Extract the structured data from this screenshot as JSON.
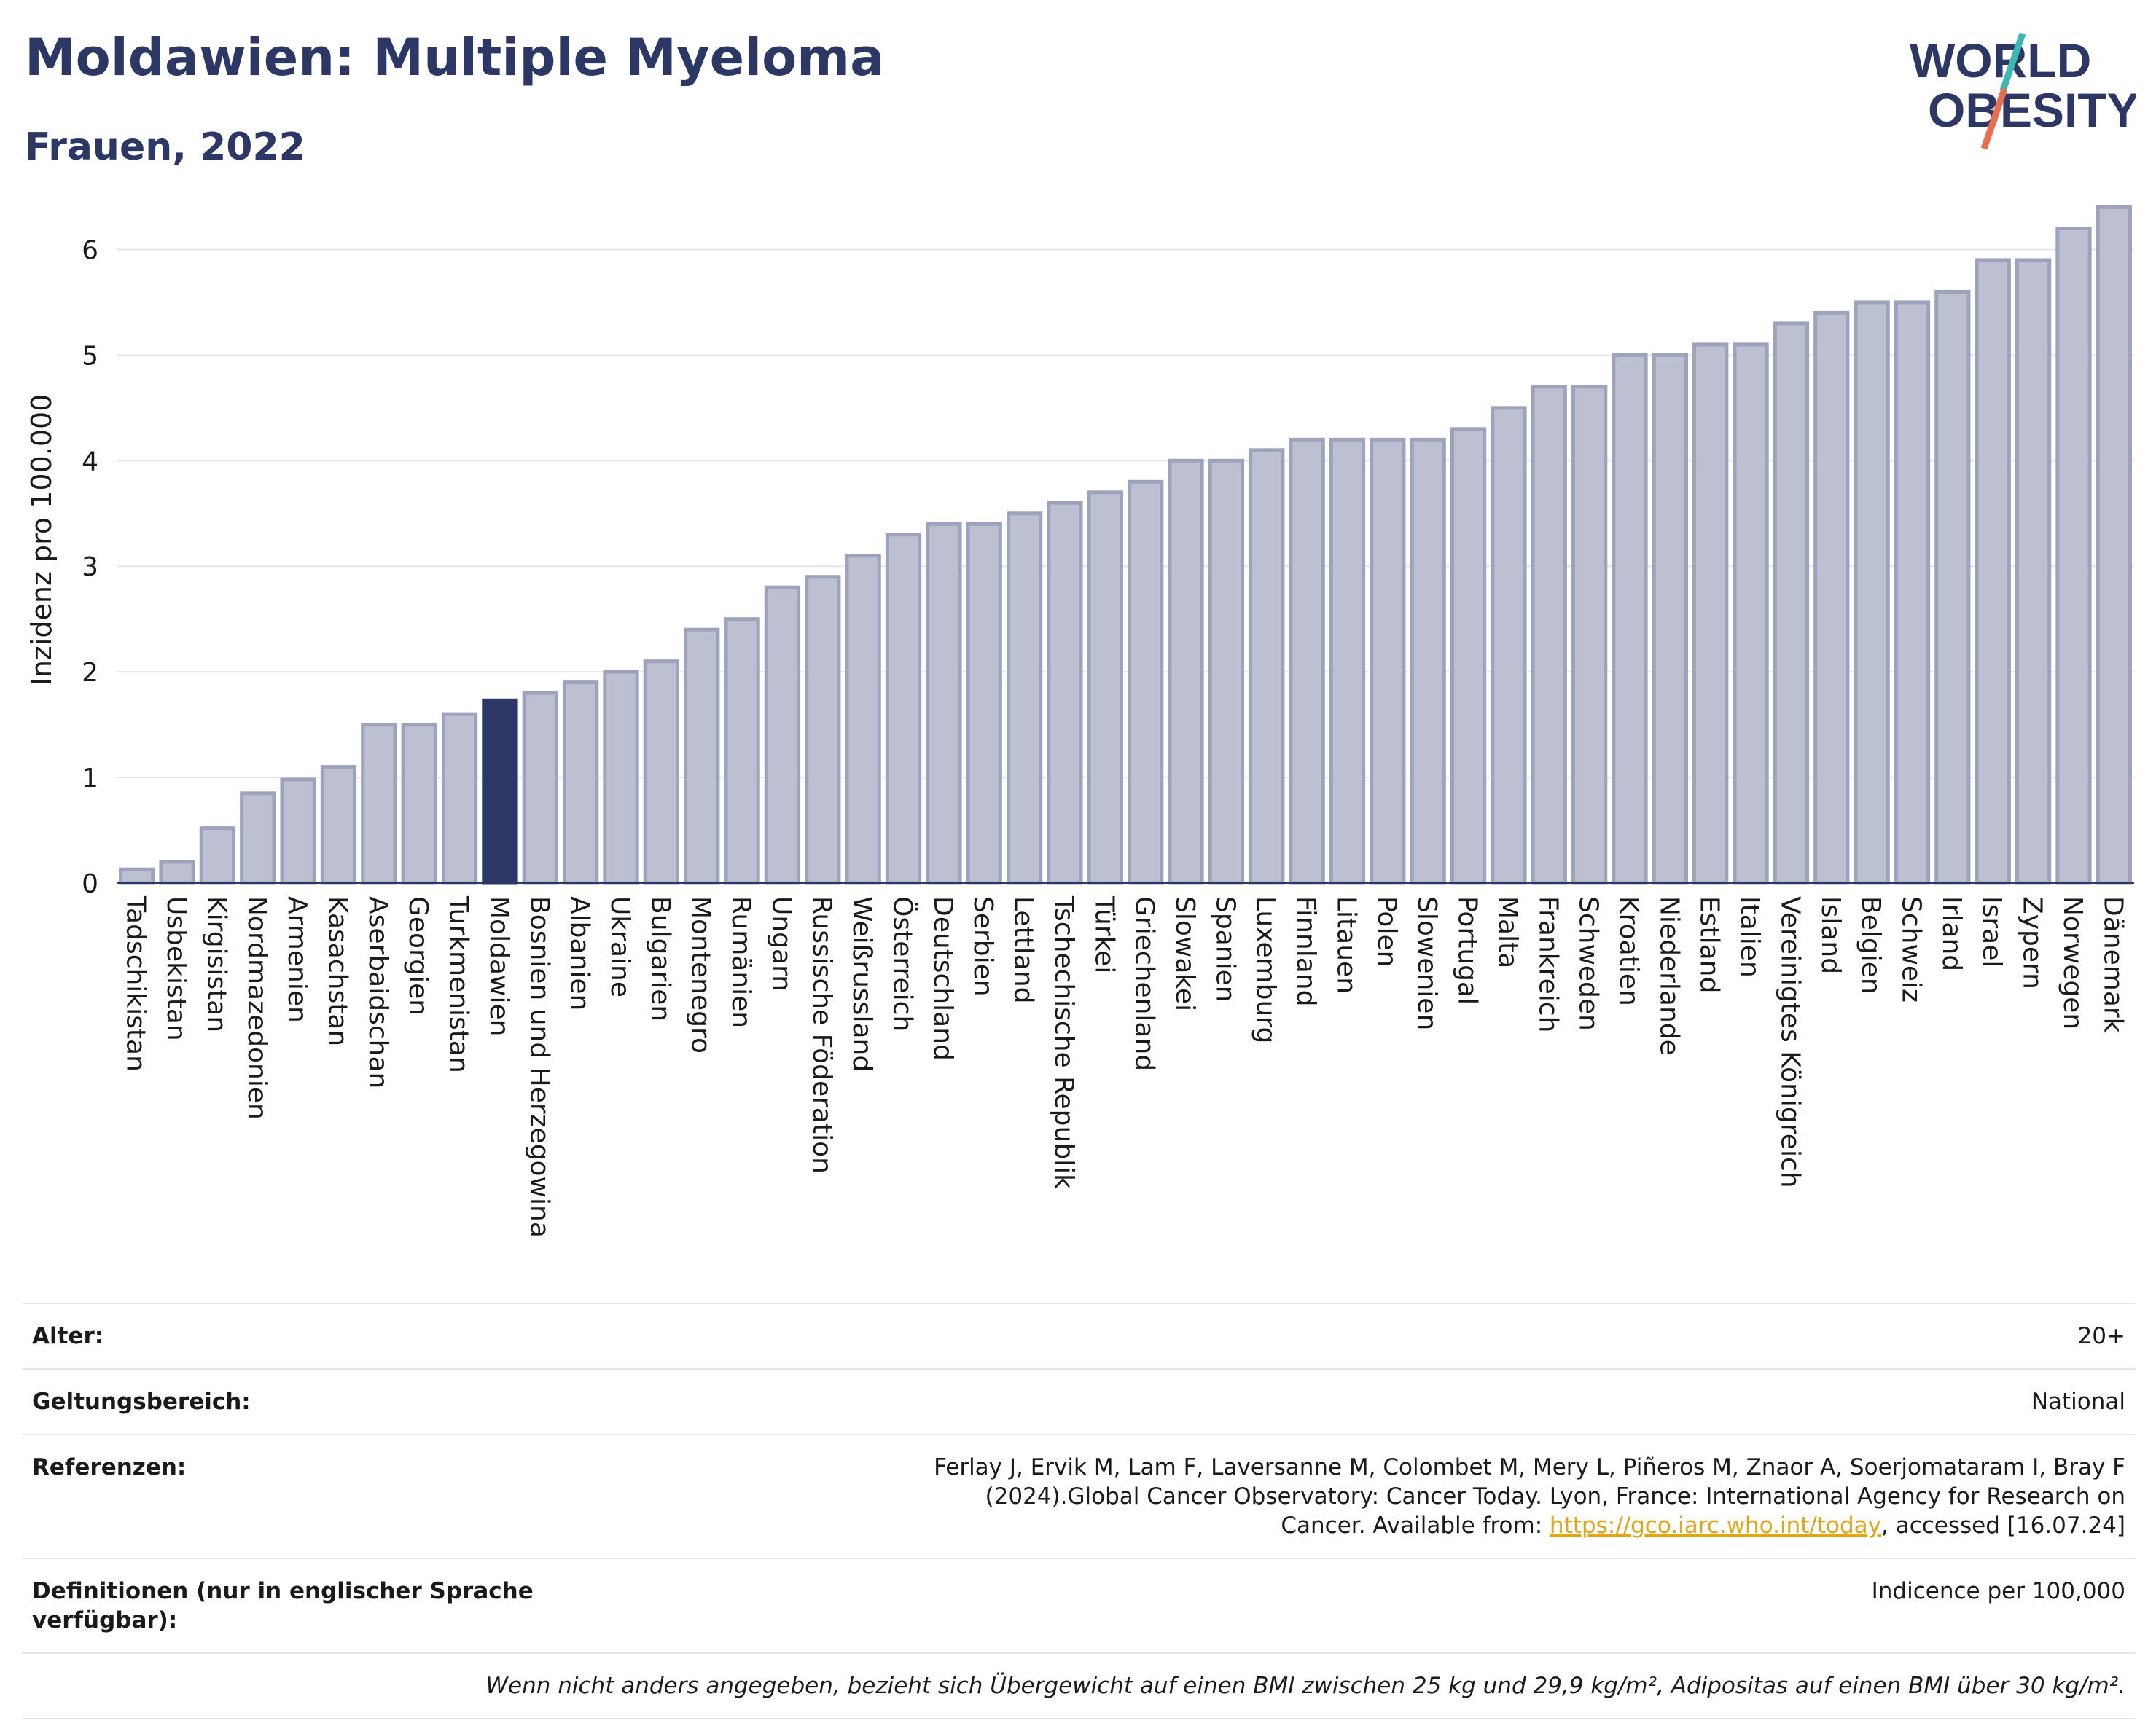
{
  "header": {
    "title": "Moldawien: Multiple Myeloma",
    "subtitle": "Frauen, 2022"
  },
  "logo": {
    "line1": "WORLD",
    "line2": "OBESITY",
    "text_color": "#2c3765",
    "slash_colors": [
      "#3bb8b0",
      "#e86e52"
    ]
  },
  "colors": {
    "bar": "#bcc0d1",
    "bar_border": "#9da3bc",
    "highlight": "#2c3765",
    "axis": "#2c3765",
    "grid": "#e6e6e6"
  },
  "chart_data": {
    "type": "bar",
    "ylabel": "Inzidenz pro 100.000",
    "ylim": [
      0,
      6.5
    ],
    "yticks": [
      0,
      1,
      2,
      3,
      4,
      5,
      6
    ],
    "grid": true,
    "highlight_category": "Moldawien",
    "categories": [
      "Tadschikistan",
      "Usbekistan",
      "Kirgisistan",
      "Nordmazedonien",
      "Armenien",
      "Kasachstan",
      "Aserbaidschan",
      "Georgien",
      "Turkmenistan",
      "Moldawien",
      "Bosnien und Herzegowina",
      "Albanien",
      "Ukraine",
      "Bulgarien",
      "Montenegro",
      "Rumänien",
      "Ungarn",
      "Russische Föderation",
      "Weißrussland",
      "Österreich",
      "Deutschland",
      "Serbien",
      "Lettland",
      "Tschechische Republik",
      "Türkei",
      "Griechenland",
      "Slowakei",
      "Spanien",
      "Luxemburg",
      "Finnland",
      "Litauen",
      "Polen",
      "Slowenien",
      "Portugal",
      "Malta",
      "Frankreich",
      "Schweden",
      "Kroatien",
      "Niederlande",
      "Estland",
      "Italien",
      "Vereinigtes Königreich",
      "Island",
      "Belgien",
      "Schweiz",
      "Irland",
      "Israel",
      "Zypern",
      "Norwegen",
      "Dänemark"
    ],
    "values": [
      0.13,
      0.2,
      0.52,
      0.85,
      0.98,
      1.1,
      1.5,
      1.5,
      1.6,
      1.73,
      1.8,
      1.9,
      2.0,
      2.1,
      2.4,
      2.5,
      2.8,
      2.9,
      3.1,
      3.3,
      3.4,
      3.4,
      3.5,
      3.6,
      3.7,
      3.8,
      4.0,
      4.0,
      4.1,
      4.2,
      4.2,
      4.2,
      4.2,
      4.3,
      4.5,
      4.7,
      4.7,
      5.0,
      5.0,
      5.1,
      5.1,
      5.3,
      5.4,
      5.5,
      5.5,
      5.6,
      5.9,
      5.9,
      6.2,
      6.4
    ]
  },
  "meta": {
    "age_label": "Alter:",
    "age_value": "20+",
    "scope_label": "Geltungsbereich:",
    "scope_value": "National",
    "ref_label": "Referenzen:",
    "ref_text_1": "Ferlay J, Ervik M, Lam F, Laversanne M, Colombet M, Mery L, Piñeros M, Znaor A, Soerjomataram I, Bray F (2024).Global Cancer Observatory: Cancer Today. Lyon, France: International Agency for Research on Cancer. Available from: ",
    "ref_link": "https://gco.iarc.who.int/today",
    "ref_text_2": ", accessed [16.07.24]",
    "def_label": "Definitionen (nur in englischer Sprache verfügbar):",
    "def_value": "Indicence per 100,000",
    "note": "Wenn nicht anders angegeben, bezieht sich Übergewicht auf einen BMI zwischen 25 kg und 29,9 kg/m², Adipositas auf einen BMI über 30 kg/m²."
  }
}
